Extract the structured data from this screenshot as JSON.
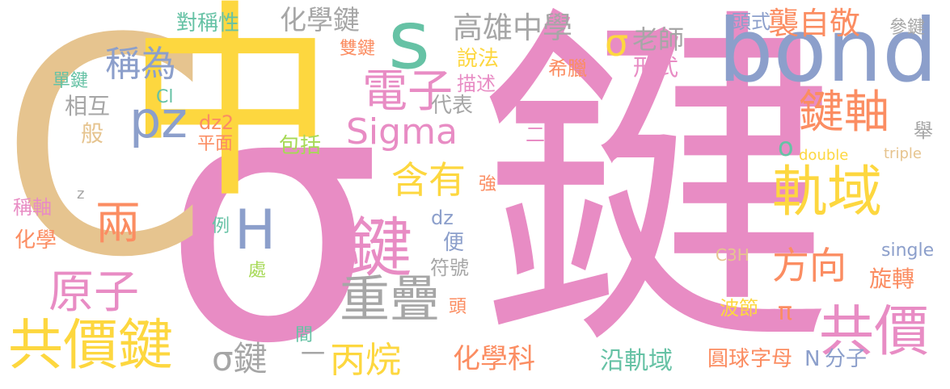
{
  "colors": {
    "pink": "#e88cc4",
    "tan": "#e6c48f",
    "yellow": "#fdd73f",
    "blue": "#8c9fcb",
    "gray": "#a6a6a6",
    "green": "#a6d955",
    "orange": "#fb8d62",
    "teal": "#66c2a5"
  },
  "words": [
    {
      "text": "鍵"
    },
    {
      "text": "σ"
    },
    {
      "text": "C"
    },
    {
      "text": "中"
    },
    {
      "text": "bond"
    },
    {
      "text": "軌域"
    },
    {
      "text": "s"
    },
    {
      "text": "鍵"
    },
    {
      "text": "共價鍵"
    },
    {
      "text": "重疊"
    },
    {
      "text": "共價"
    },
    {
      "text": "原子"
    },
    {
      "text": "鍵軸"
    },
    {
      "text": "pz"
    },
    {
      "text": "Sigma"
    },
    {
      "text": "H"
    },
    {
      "text": "兩"
    },
    {
      "text": "電子"
    },
    {
      "text": "稱為"
    },
    {
      "text": "丙烷"
    },
    {
      "text": "σ鍵"
    },
    {
      "text": "含有"
    },
    {
      "text": "方向"
    },
    {
      "text": "高雄中學"
    },
    {
      "text": "化學鍵"
    },
    {
      "text": "襲自敬"
    },
    {
      "text": "σ"
    },
    {
      "text": "化學科"
    },
    {
      "text": "對稱性"
    },
    {
      "text": "老師"
    },
    {
      "text": "頭式"
    },
    {
      "text": "參鍵"
    },
    {
      "text": "雙鍵"
    },
    {
      "text": "說法"
    },
    {
      "text": "形式"
    },
    {
      "text": "希臘"
    },
    {
      "text": "描述"
    },
    {
      "text": "單鍵"
    },
    {
      "text": "Cl"
    },
    {
      "text": "相互"
    },
    {
      "text": "代表"
    },
    {
      "text": "般"
    },
    {
      "text": "dz2"
    },
    {
      "text": "平面"
    },
    {
      "text": "包括"
    },
    {
      "text": "二"
    },
    {
      "text": "o"
    },
    {
      "text": "double"
    },
    {
      "text": "triple"
    },
    {
      "text": "舉"
    },
    {
      "text": "稱軸"
    },
    {
      "text": "z"
    },
    {
      "text": "化學"
    },
    {
      "text": "強"
    },
    {
      "text": "dz"
    },
    {
      "text": "例"
    },
    {
      "text": "便"
    },
    {
      "text": "處"
    },
    {
      "text": "符號"
    },
    {
      "text": "C3H"
    },
    {
      "text": "single"
    },
    {
      "text": "旋轉"
    },
    {
      "text": "頭"
    },
    {
      "text": "π"
    },
    {
      "text": "波節"
    },
    {
      "text": "間"
    },
    {
      "text": "一"
    },
    {
      "text": "沿軌域"
    },
    {
      "text": "圓球"
    },
    {
      "text": "字母"
    },
    {
      "text": "N"
    },
    {
      "text": "分子"
    }
  ]
}
